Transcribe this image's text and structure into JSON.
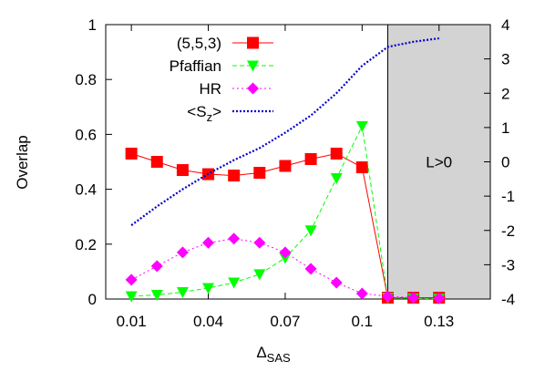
{
  "chart_data": {
    "type": "line",
    "x": [
      0.01,
      0.02,
      0.03,
      0.04,
      0.05,
      0.06,
      0.07,
      0.08,
      0.09,
      0.1,
      0.11,
      0.12,
      0.13
    ],
    "xlim": [
      0.0,
      0.15
    ],
    "ylim": [
      0,
      1
    ],
    "y2lim": [
      -4,
      4
    ],
    "x_ticks": [
      "0.01",
      "0.04",
      "0.07",
      "0.1",
      "0.13"
    ],
    "x_tick_values": [
      0.01,
      0.04,
      0.07,
      0.1,
      0.13
    ],
    "y_ticks": [
      "0",
      "0.2",
      "0.4",
      "0.6",
      "0.8",
      "1"
    ],
    "y_tick_values": [
      0,
      0.2,
      0.4,
      0.6,
      0.8,
      1.0
    ],
    "y2_ticks": [
      "-4",
      "-3",
      "-2",
      "-1",
      "0",
      "1",
      "2",
      "3",
      "4"
    ],
    "y2_tick_values": [
      -4,
      -3,
      -2,
      -1,
      0,
      1,
      2,
      3,
      4
    ],
    "xlabel_main": "Δ",
    "xlabel_sub": "SAS",
    "ylabel": "Overlap",
    "legend_position": "top-left",
    "shaded_region": {
      "x_start": 0.11,
      "x_end": 0.15,
      "label": "L>0",
      "color": "#d3d3d3"
    },
    "series": [
      {
        "name": "(5,5,3)",
        "axis": "left",
        "color": "#ff0000",
        "marker": "square",
        "line": "solid",
        "x": [
          0.01,
          0.02,
          0.03,
          0.04,
          0.05,
          0.06,
          0.07,
          0.08,
          0.09,
          0.1,
          0.11,
          0.12,
          0.13
        ],
        "values": [
          0.53,
          0.5,
          0.47,
          0.455,
          0.45,
          0.46,
          0.485,
          0.51,
          0.53,
          0.48,
          0.005,
          0.005,
          0.005
        ]
      },
      {
        "name": "Pfaffian",
        "axis": "left",
        "color": "#00ff00",
        "marker": "triangle-down",
        "line": "dashed",
        "x": [
          0.01,
          0.02,
          0.03,
          0.04,
          0.05,
          0.06,
          0.07,
          0.08,
          0.09,
          0.1,
          0.11,
          0.12,
          0.13
        ],
        "values": [
          0.01,
          0.015,
          0.025,
          0.04,
          0.06,
          0.09,
          0.15,
          0.25,
          0.44,
          0.63,
          0.005,
          0.002,
          0.001
        ]
      },
      {
        "name": "HR",
        "axis": "left",
        "color": "#ff00ff",
        "marker": "diamond",
        "line": "dotted",
        "x": [
          0.01,
          0.02,
          0.03,
          0.04,
          0.05,
          0.06,
          0.07,
          0.08,
          0.09,
          0.1,
          0.11,
          0.12,
          0.13
        ],
        "values": [
          0.07,
          0.12,
          0.17,
          0.205,
          0.22,
          0.205,
          0.17,
          0.11,
          0.06,
          0.02,
          0.01,
          0.005,
          0.003
        ]
      },
      {
        "name": "<S",
        "name_sub": "z",
        "name_tail": ">",
        "axis": "right",
        "color": "#0000cc",
        "marker": "none",
        "line": "dense-dotted",
        "x": [
          0.01,
          0.02,
          0.03,
          0.04,
          0.05,
          0.06,
          0.07,
          0.08,
          0.09,
          0.1,
          0.11,
          0.12,
          0.13
        ],
        "values": [
          -1.85,
          -1.3,
          -0.8,
          -0.35,
          0.05,
          0.4,
          0.85,
          1.35,
          2.0,
          2.8,
          3.35,
          3.5,
          3.6
        ]
      }
    ]
  }
}
